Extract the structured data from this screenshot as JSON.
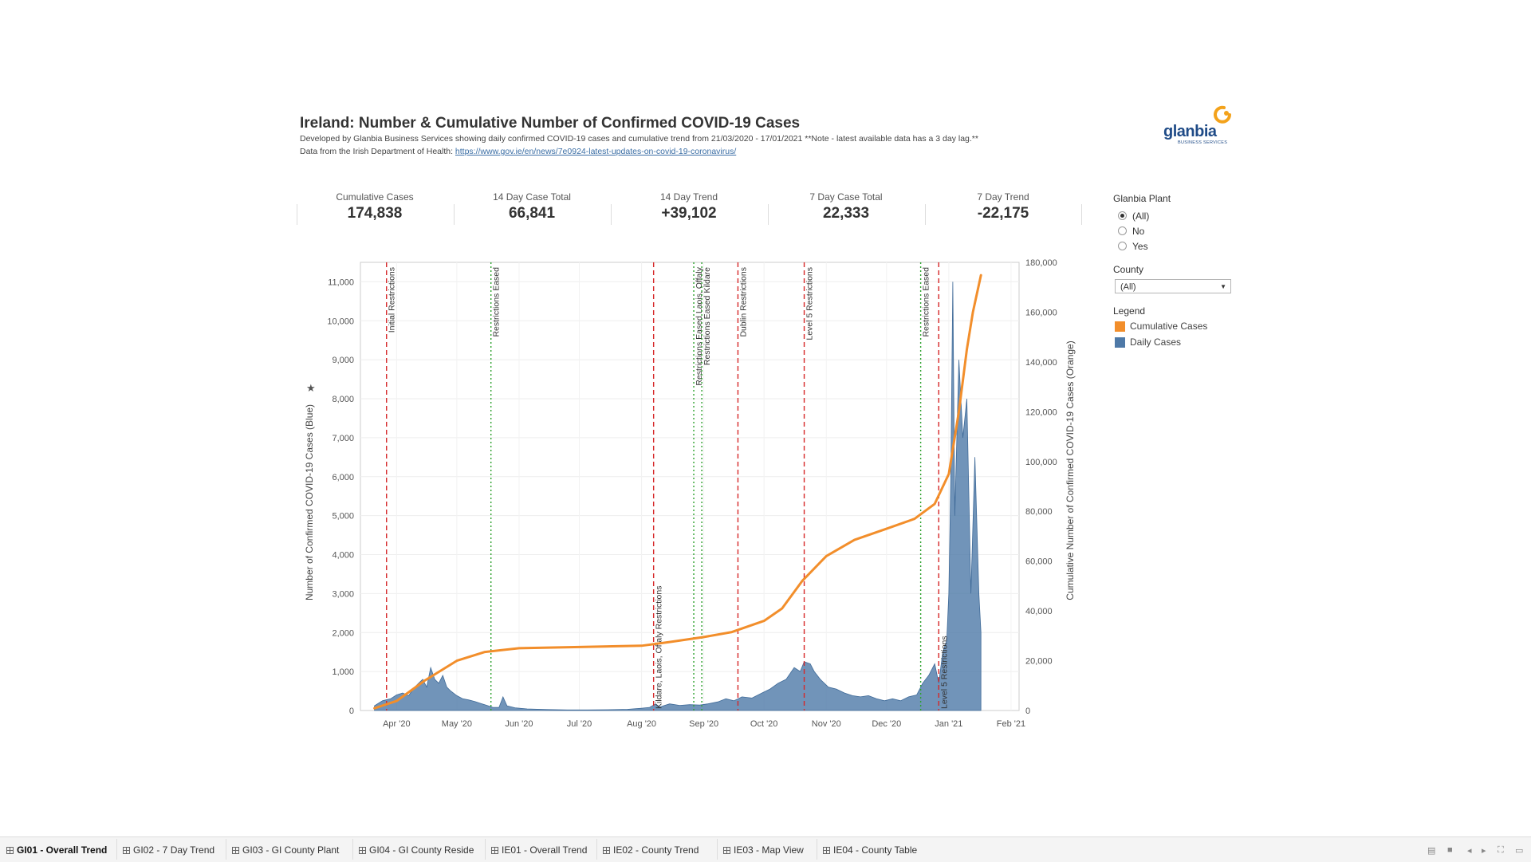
{
  "header": {
    "title": "Ireland: Number & Cumulative Number of Confirmed COVID-19 Cases",
    "subtitle1": "Developed by Glanbia Business Services showing daily confirmed COVID-19 cases  and cumulative trend from 21/03/2020 - 17/01/2021 **Note - latest available data has a 3 day lag.**",
    "subtitle2_prefix": "Data from the Irish Department of Health: ",
    "subtitle2_link": "https://www.gov.ie/en/news/7e0924-latest-updates-on-covid-19-coronavirus/"
  },
  "logo": {
    "text": "glanbia",
    "subtext": "BUSINESS SERVICES",
    "colors": {
      "text": "#1f4b87",
      "mark": "#f3a21b"
    }
  },
  "kpis": [
    {
      "label": "Cumulative Cases",
      "value": "174,838"
    },
    {
      "label": "14 Day Case Total",
      "value": "66,841"
    },
    {
      "label": "14 Day Trend",
      "value": "+39,102"
    },
    {
      "label": "7 Day Case Total",
      "value": "22,333"
    },
    {
      "label": "7 Day Trend",
      "value": "-22,175"
    }
  ],
  "filters": {
    "glanbia_plant": {
      "label": "Glanbia Plant",
      "options": [
        "(All)",
        "No",
        "Yes"
      ],
      "selected": "(All)"
    },
    "county": {
      "label": "County",
      "value": "(All)"
    },
    "legend": {
      "label": "Legend",
      "items": [
        {
          "name": "Cumulative Cases",
          "color": "#f28e2b"
        },
        {
          "name": "Daily Cases",
          "color": "#4e79a7"
        }
      ]
    }
  },
  "tabs": [
    {
      "label": "GI01 - Overall Trend",
      "active": true
    },
    {
      "label": "GI02 - 7 Day Trend",
      "active": false
    },
    {
      "label": "GI03 - GI County Plant",
      "active": false
    },
    {
      "label": "GI04 - GI County Reside",
      "active": false
    },
    {
      "label": "IE01 - Overall Trend",
      "active": false
    },
    {
      "label": "IE02 - County Trend",
      "active": false
    },
    {
      "label": "IE03 - Map View",
      "active": false
    },
    {
      "label": "IE04 - County Table",
      "active": false
    }
  ],
  "chart_data": {
    "type": "area",
    "xlabel": "",
    "ylabel_left": "Number of Confirmed COVID-19 Cases (Blue)",
    "ylabel_right": "Cumulative Number of Confirmed COVID-19 Cases (Orange)",
    "x_range": [
      "2020-03-14",
      "2021-02-05"
    ],
    "ylim_left": [
      0,
      11500
    ],
    "ylim_right": [
      0,
      180000
    ],
    "yticks_left": [
      "0",
      "1,000",
      "2,000",
      "3,000",
      "4,000",
      "5,000",
      "6,000",
      "7,000",
      "8,000",
      "9,000",
      "10,000",
      "11,000"
    ],
    "yticks_right": [
      "0",
      "20,000",
      "40,000",
      "60,000",
      "80,000",
      "100,000",
      "120,000",
      "140,000",
      "160,000",
      "180,000"
    ],
    "xticks": [
      {
        "date": "2020-04-01",
        "label": "Apr '20"
      },
      {
        "date": "2020-05-01",
        "label": "May '20"
      },
      {
        "date": "2020-06-01",
        "label": "Jun '20"
      },
      {
        "date": "2020-07-01",
        "label": "Jul '20"
      },
      {
        "date": "2020-08-01",
        "label": "Aug '20"
      },
      {
        "date": "2020-09-01",
        "label": "Sep '20"
      },
      {
        "date": "2020-10-01",
        "label": "Oct '20"
      },
      {
        "date": "2020-11-01",
        "label": "Nov '20"
      },
      {
        "date": "2020-12-01",
        "label": "Dec '20"
      },
      {
        "date": "2021-01-01",
        "label": "Jan '21"
      },
      {
        "date": "2021-02-01",
        "label": "Feb '21"
      }
    ],
    "grid": true,
    "series": [
      {
        "name": "Daily Cases",
        "color": "#4e79a7",
        "axis": "left",
        "points": [
          [
            "2020-03-21",
            120
          ],
          [
            "2020-03-25",
            250
          ],
          [
            "2020-03-29",
            300
          ],
          [
            "2020-04-01",
            400
          ],
          [
            "2020-04-04",
            450
          ],
          [
            "2020-04-07",
            380
          ],
          [
            "2020-04-10",
            600
          ],
          [
            "2020-04-12",
            700
          ],
          [
            "2020-04-14",
            800
          ],
          [
            "2020-04-16",
            600
          ],
          [
            "2020-04-18",
            1100
          ],
          [
            "2020-04-20",
            800
          ],
          [
            "2020-04-22",
            700
          ],
          [
            "2020-04-24",
            900
          ],
          [
            "2020-04-26",
            600
          ],
          [
            "2020-04-28",
            500
          ],
          [
            "2020-05-01",
            380
          ],
          [
            "2020-05-04",
            300
          ],
          [
            "2020-05-07",
            270
          ],
          [
            "2020-05-10",
            230
          ],
          [
            "2020-05-13",
            180
          ],
          [
            "2020-05-16",
            130
          ],
          [
            "2020-05-19",
            80
          ],
          [
            "2020-05-22",
            80
          ],
          [
            "2020-05-24",
            350
          ],
          [
            "2020-05-26",
            120
          ],
          [
            "2020-05-30",
            70
          ],
          [
            "2020-06-05",
            40
          ],
          [
            "2020-06-15",
            25
          ],
          [
            "2020-06-25",
            15
          ],
          [
            "2020-07-05",
            15
          ],
          [
            "2020-07-15",
            20
          ],
          [
            "2020-07-25",
            30
          ],
          [
            "2020-08-01",
            60
          ],
          [
            "2020-08-05",
            80
          ],
          [
            "2020-08-08",
            170
          ],
          [
            "2020-08-10",
            90
          ],
          [
            "2020-08-15",
            170
          ],
          [
            "2020-08-20",
            130
          ],
          [
            "2020-08-25",
            150
          ],
          [
            "2020-08-30",
            140
          ],
          [
            "2020-09-03",
            170
          ],
          [
            "2020-09-08",
            220
          ],
          [
            "2020-09-12",
            300
          ],
          [
            "2020-09-16",
            250
          ],
          [
            "2020-09-20",
            350
          ],
          [
            "2020-09-25",
            320
          ],
          [
            "2020-09-30",
            450
          ],
          [
            "2020-10-04",
            550
          ],
          [
            "2020-10-08",
            700
          ],
          [
            "2020-10-12",
            800
          ],
          [
            "2020-10-16",
            1100
          ],
          [
            "2020-10-19",
            1000
          ],
          [
            "2020-10-21",
            1250
          ],
          [
            "2020-10-24",
            1200
          ],
          [
            "2020-10-26",
            1000
          ],
          [
            "2020-10-29",
            800
          ],
          [
            "2020-11-02",
            600
          ],
          [
            "2020-11-06",
            550
          ],
          [
            "2020-11-10",
            450
          ],
          [
            "2020-11-14",
            380
          ],
          [
            "2020-11-18",
            350
          ],
          [
            "2020-11-22",
            380
          ],
          [
            "2020-11-26",
            300
          ],
          [
            "2020-11-30",
            250
          ],
          [
            "2020-12-04",
            300
          ],
          [
            "2020-12-08",
            250
          ],
          [
            "2020-12-12",
            350
          ],
          [
            "2020-12-16",
            400
          ],
          [
            "2020-12-19",
            700
          ],
          [
            "2020-12-22",
            900
          ],
          [
            "2020-12-25",
            1200
          ],
          [
            "2020-12-27",
            700
          ],
          [
            "2020-12-29",
            1500
          ],
          [
            "2020-12-31",
            1800
          ],
          [
            "2021-01-01",
            3000
          ],
          [
            "2021-01-02",
            6000
          ],
          [
            "2021-01-03",
            11000
          ],
          [
            "2021-01-04",
            5000
          ],
          [
            "2021-01-06",
            9000
          ],
          [
            "2021-01-08",
            7000
          ],
          [
            "2021-01-10",
            8000
          ],
          [
            "2021-01-12",
            3000
          ],
          [
            "2021-01-14",
            6500
          ],
          [
            "2021-01-16",
            3000
          ],
          [
            "2021-01-17",
            2000
          ]
        ]
      },
      {
        "name": "Cumulative Cases",
        "color": "#f28e2b",
        "axis": "right",
        "points": [
          [
            "2020-03-21",
            900
          ],
          [
            "2020-04-01",
            3800
          ],
          [
            "2020-04-15",
            12000
          ],
          [
            "2020-05-01",
            20000
          ],
          [
            "2020-05-15",
            23500
          ],
          [
            "2020-06-01",
            25000
          ],
          [
            "2020-07-01",
            25500
          ],
          [
            "2020-08-01",
            26000
          ],
          [
            "2020-08-15",
            27500
          ],
          [
            "2020-09-01",
            29500
          ],
          [
            "2020-09-15",
            31500
          ],
          [
            "2020-10-01",
            36000
          ],
          [
            "2020-10-10",
            41000
          ],
          [
            "2020-10-20",
            52000
          ],
          [
            "2020-11-01",
            62000
          ],
          [
            "2020-11-15",
            68500
          ],
          [
            "2020-12-01",
            73000
          ],
          [
            "2020-12-15",
            77000
          ],
          [
            "2020-12-25",
            83000
          ],
          [
            "2021-01-01",
            95000
          ],
          [
            "2021-01-06",
            120000
          ],
          [
            "2021-01-10",
            145000
          ],
          [
            "2021-01-13",
            160000
          ],
          [
            "2021-01-17",
            174838
          ]
        ]
      }
    ],
    "events": [
      {
        "date": "2020-03-27",
        "label": "Initial Restrictions",
        "color": "#d62728",
        "style": "dashed",
        "label_pos": "top"
      },
      {
        "date": "2020-05-18",
        "label": "Restrictions Eased",
        "color": "#2ca02c",
        "style": "dotted",
        "label_pos": "top"
      },
      {
        "date": "2020-08-07",
        "label": "Kildare, Laois, Offaly Restrictions",
        "color": "#d62728",
        "style": "dashed",
        "label_pos": "bottom"
      },
      {
        "date": "2020-08-27",
        "label": "Restrictions Eased Laois, Offaly",
        "color": "#2ca02c",
        "style": "dotted",
        "label_pos": "top"
      },
      {
        "date": "2020-08-31",
        "label": "Restrictions Eased Kildare",
        "color": "#2ca02c",
        "style": "dotted",
        "label_pos": "top"
      },
      {
        "date": "2020-09-18",
        "label": "Dublin Restrictions",
        "color": "#d62728",
        "style": "dashed",
        "label_pos": "top"
      },
      {
        "date": "2020-10-21",
        "label": "Level 5 Restrictions",
        "color": "#d62728",
        "style": "dashed",
        "label_pos": "top"
      },
      {
        "date": "2020-12-18",
        "label": "Restrictions Eased",
        "color": "#2ca02c",
        "style": "dotted",
        "label_pos": "top"
      },
      {
        "date": "2020-12-27",
        "label": "Level 5 Restrictions",
        "color": "#d62728",
        "style": "dashed",
        "label_pos": "bottom"
      }
    ]
  }
}
